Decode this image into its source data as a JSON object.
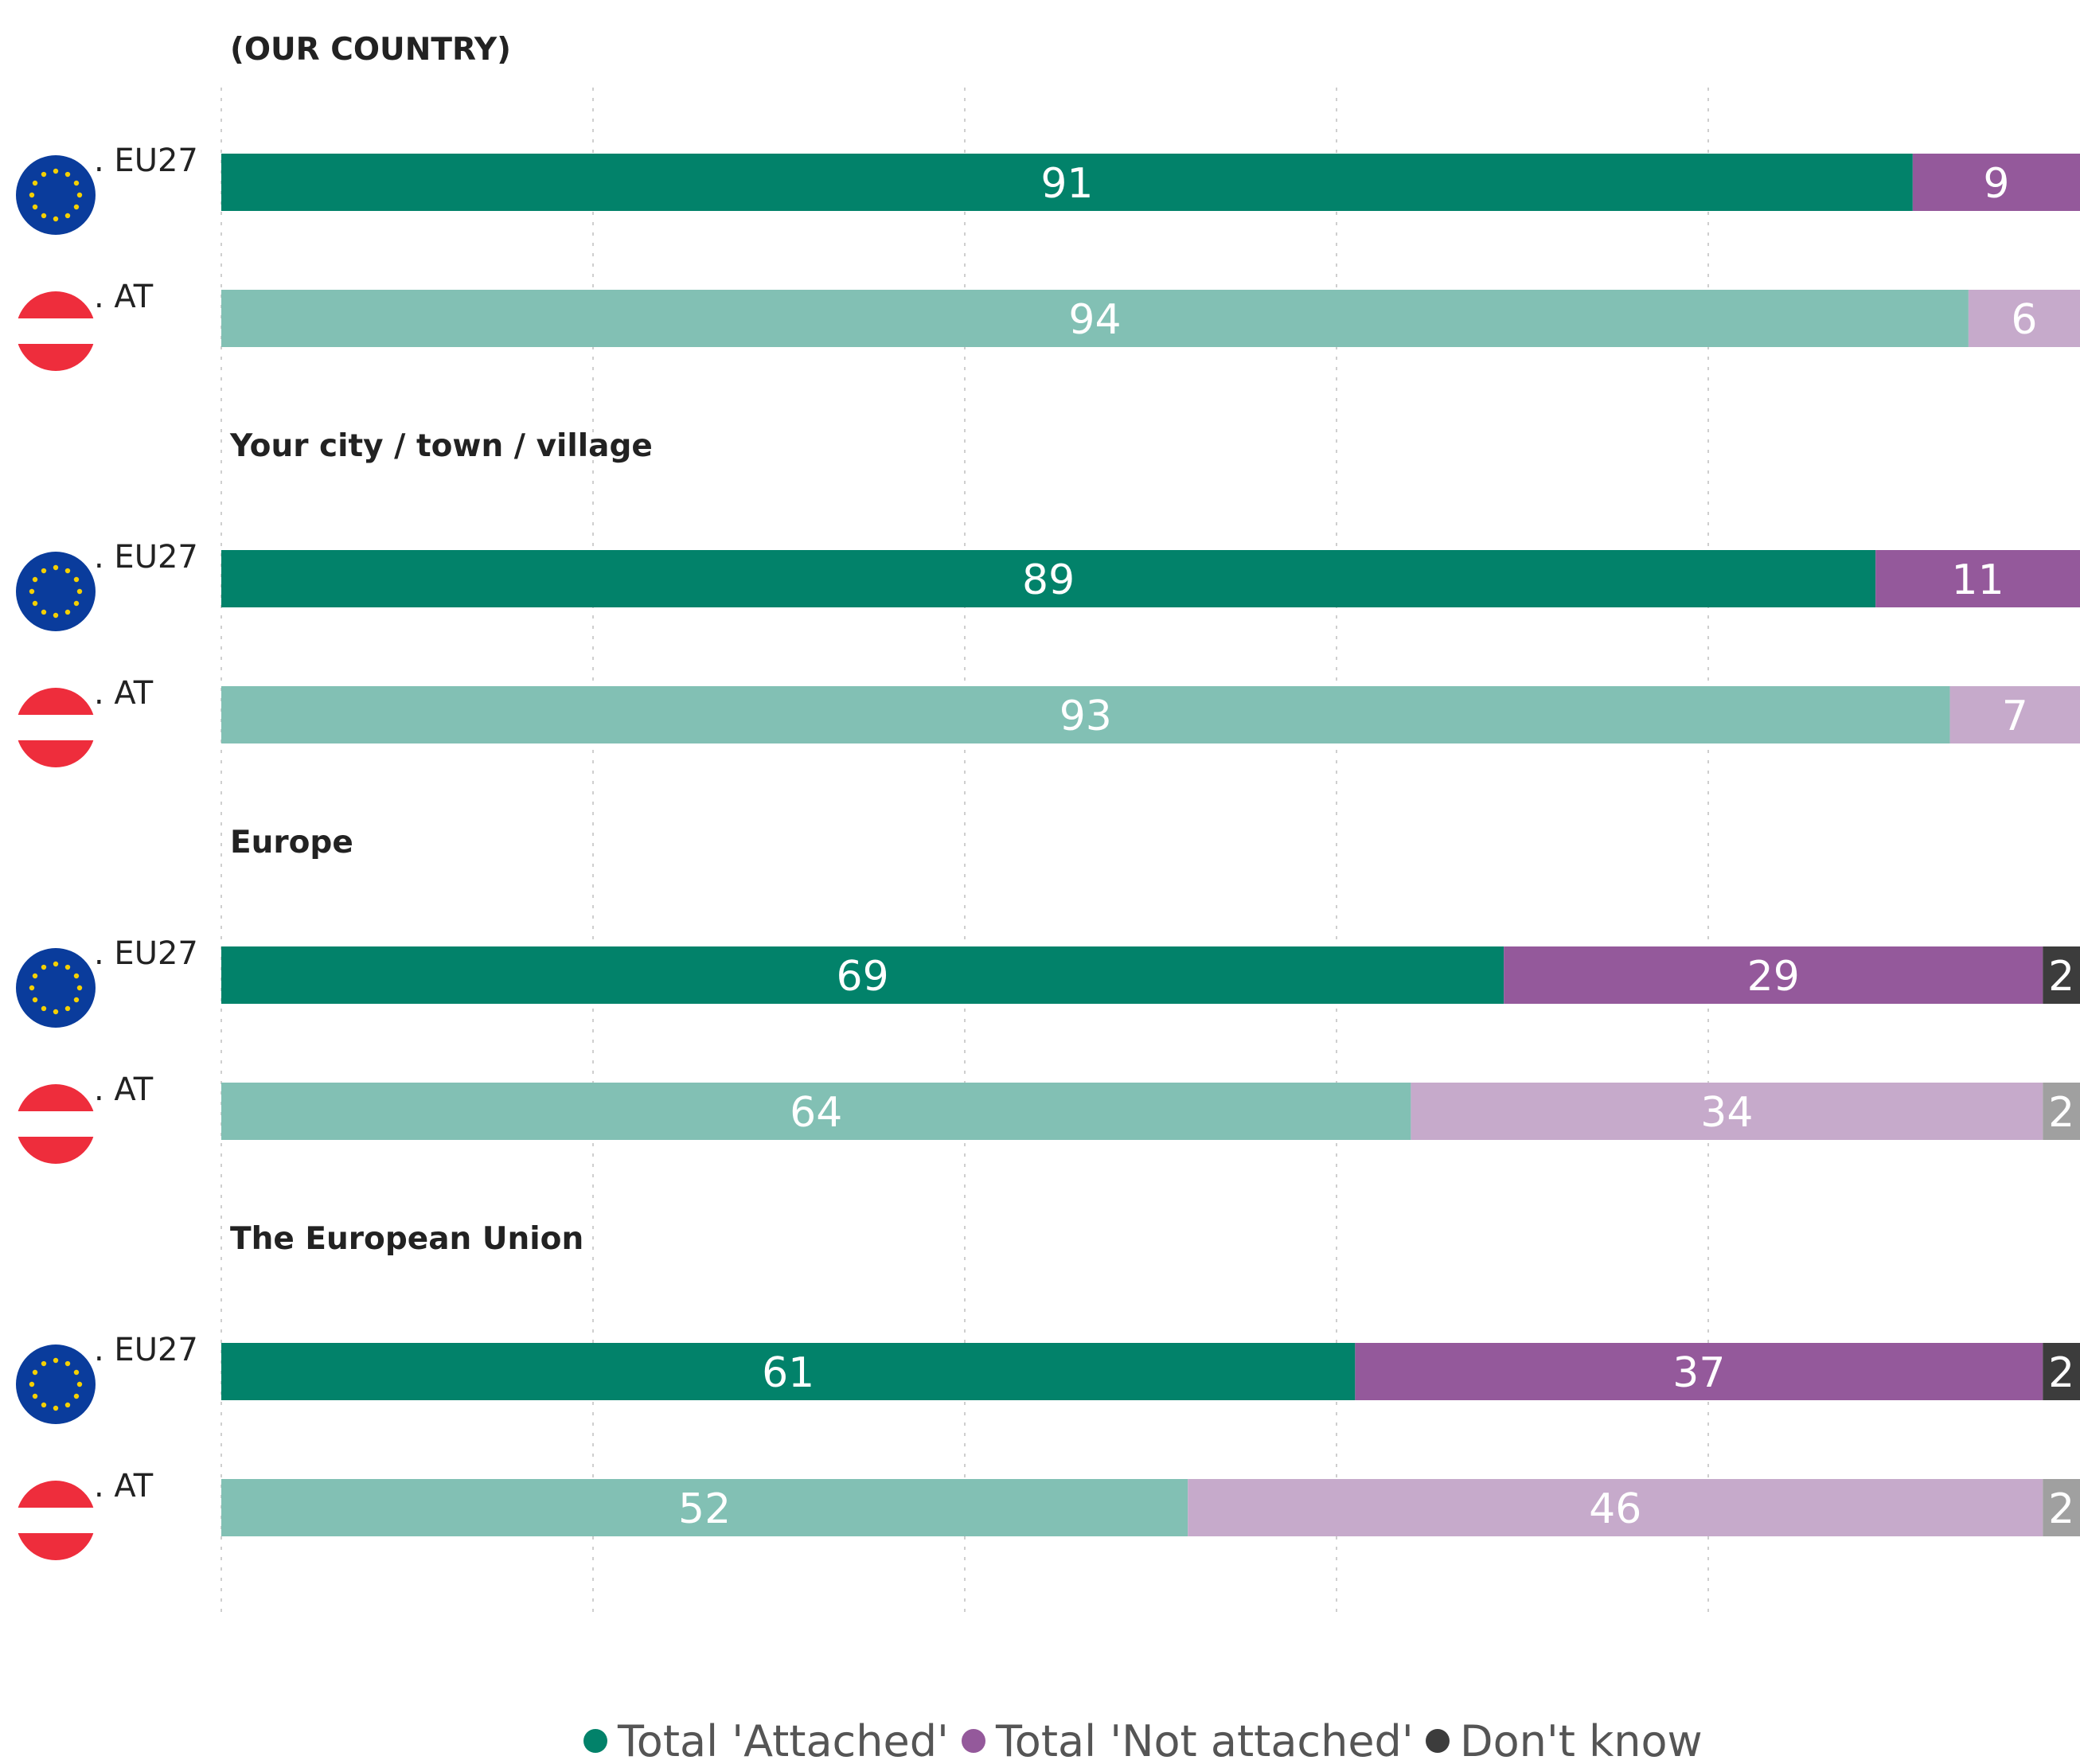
{
  "chart_data": {
    "type": "bar",
    "orientation": "horizontal",
    "stacked": true,
    "xlim": [
      0,
      100
    ],
    "grid": true,
    "legend_position": "bottom",
    "legend": [
      {
        "name": "Total 'Attached'",
        "color": "#02826a"
      },
      {
        "name": "Total 'Not attached'",
        "color": "#94599b"
      },
      {
        "name": "Don't know",
        "color": "#3c3c3c"
      }
    ],
    "colors": {
      "EU27": [
        "#02826a",
        "#94599b",
        "#3c3c3c"
      ],
      "AT": [
        "#82c0b4",
        "#c6aacb",
        "#a0a0a0"
      ]
    },
    "groups": [
      {
        "title": "(OUR COUNTRY)",
        "rows": [
          {
            "label": "EU27",
            "flag": "eu-flag-icon",
            "values": [
              91,
              9,
              0
            ]
          },
          {
            "label": "AT",
            "flag": "austria-flag-icon",
            "values": [
              94,
              6,
              0
            ]
          }
        ]
      },
      {
        "title": "Your city / town / village",
        "rows": [
          {
            "label": "EU27",
            "flag": "eu-flag-icon",
            "values": [
              89,
              11,
              0
            ]
          },
          {
            "label": "AT",
            "flag": "austria-flag-icon",
            "values": [
              93,
              7,
              0
            ]
          }
        ]
      },
      {
        "title": "Europe",
        "rows": [
          {
            "label": "EU27",
            "flag": "eu-flag-icon",
            "values": [
              69,
              29,
              2
            ]
          },
          {
            "label": "AT",
            "flag": "austria-flag-icon",
            "values": [
              64,
              34,
              2
            ]
          }
        ]
      },
      {
        "title": "The European Union",
        "rows": [
          {
            "label": "EU27",
            "flag": "eu-flag-icon",
            "values": [
              61,
              37,
              2
            ]
          },
          {
            "label": "AT",
            "flag": "austria-flag-icon",
            "values": [
              52,
              46,
              2
            ]
          }
        ]
      }
    ]
  }
}
